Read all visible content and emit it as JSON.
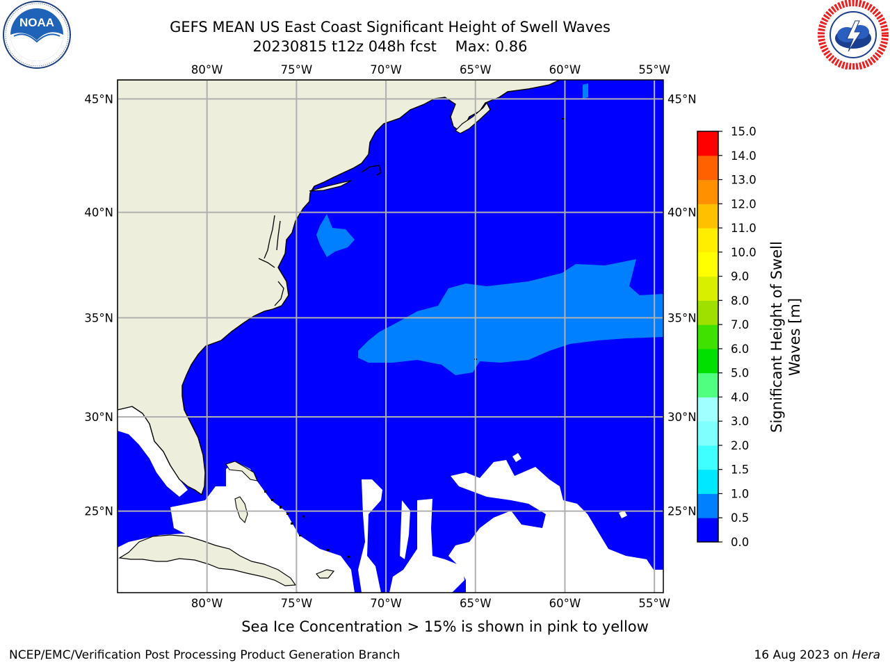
{
  "title_line1": "GEFS MEAN US East Coast Significant Height of Swell Waves",
  "title_line2": "20230815 t12z 048h fcst    Max: 0.86",
  "caption": "Sea Ice Concentration > 15% is shown in pink to yellow",
  "footer_left": "NCEP/EMC/Verification Post Processing Product Generation Branch",
  "footer_date": "16 Aug 2023 on ",
  "footer_host": "Hera",
  "map": {
    "lon_range": [
      -85,
      -54.5
    ],
    "lat_range": [
      20.5,
      45.8
    ],
    "lon_ticks": [
      "80°W",
      "75°W",
      "70°W",
      "65°W",
      "60°W",
      "55°W"
    ],
    "lat_ticks": [
      "45°N",
      "40°N",
      "35°N",
      "30°N",
      "25°N"
    ],
    "colors": {
      "land": "#eeeedd",
      "ocean_0_0.5": "#0000ff",
      "ocean_0.5_1.0": "#0080ff",
      "masked": "#ffffff",
      "grid": "#b0b0b0"
    }
  },
  "colorbar": {
    "label_line1": "Significant Height of Swell",
    "label_line2": "Waves [m]",
    "levels": [
      "0.0",
      "0.5",
      "1.0",
      "1.5",
      "2.0",
      "3.0",
      "4.0",
      "5.0",
      "6.0",
      "7.0",
      "8.0",
      "9.0",
      "10.0",
      "11.0",
      "12.0",
      "13.0",
      "14.0",
      "15.0"
    ],
    "colors": [
      "#0000ff",
      "#0080ff",
      "#00e8ff",
      "#40ffff",
      "#80ffff",
      "#a0ffff",
      "#50ff80",
      "#00e000",
      "#40e000",
      "#a0e000",
      "#d8f000",
      "#ffff00",
      "#ffee00",
      "#ffc000",
      "#ff9000",
      "#ff6000",
      "#ff0000"
    ]
  },
  "logos": {
    "noaa_icon": "noaa-logo-icon",
    "noaa_text": "NOAA",
    "noaa_ring": "NATIONAL OCEANIC AND ATMOSPHERIC ADMINISTRATION · U.S. DEPARTMENT OF COMMERCE",
    "nws_icon": "nws-logo-icon",
    "nws_ring": "NATIONAL WEATHER SERVICE"
  }
}
